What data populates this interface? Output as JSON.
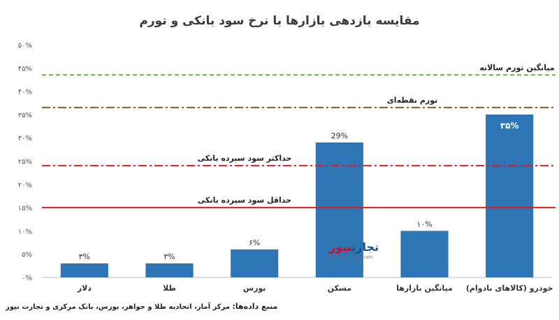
{
  "chart_data": {
    "type": "bar",
    "title": "مقایسه بازدهی بازارها با نرخ سود بانکی و تورم",
    "categories": [
      "دلار",
      "طلا",
      "بورس",
      "مسکن",
      "میانگین بازارها",
      "خودرو (کالاهای بادوام)"
    ],
    "values": [
      3,
      3,
      6,
      29,
      10,
      35
    ],
    "value_labels": [
      "۳%",
      "۳%",
      "۶%",
      "29%",
      "۱۰%",
      "۳۵%"
    ],
    "ylim": [
      0,
      50
    ],
    "yticks": [
      0,
      5,
      10,
      15,
      20,
      25,
      30,
      35,
      40,
      45,
      50
    ],
    "ytick_labels": [
      "۰%",
      "۵%",
      "۱۰%",
      "۱۵%",
      "۲۰%",
      "۲۵%",
      "۳۰%",
      "۳۵%",
      "۴۰%",
      "۴۵%",
      "۵۰%"
    ],
    "bar_color": "#2e75b6",
    "reference_lines": [
      {
        "label": "میانگین تورم سالانه",
        "value": 43.5,
        "color": "#5cb83c",
        "style": "dashed"
      },
      {
        "label": "تورم نقطه‌ای",
        "value": 36.5,
        "color": "#8b5a1e",
        "style": "dashdot"
      },
      {
        "label": "حداکثر سود سپرده بانکی",
        "value": 24,
        "color": "#e41a1c",
        "style": "dashdot"
      },
      {
        "label": "حداقل سود سپرده بانکی",
        "value": 15,
        "color": "#e41a1c",
        "style": "solid"
      }
    ],
    "grid": false,
    "legend": "none"
  },
  "source": {
    "label": "منبع داده‌ها:",
    "text": "مرکز آمار، اتحادیه طلا و جواهر، بورس، بانک مرکزی و تجارت نیوز"
  },
  "watermark": {
    "brand_main": "تجارت",
    "brand_accent": "نیوز",
    "url": "www.tejaratnews.com"
  }
}
